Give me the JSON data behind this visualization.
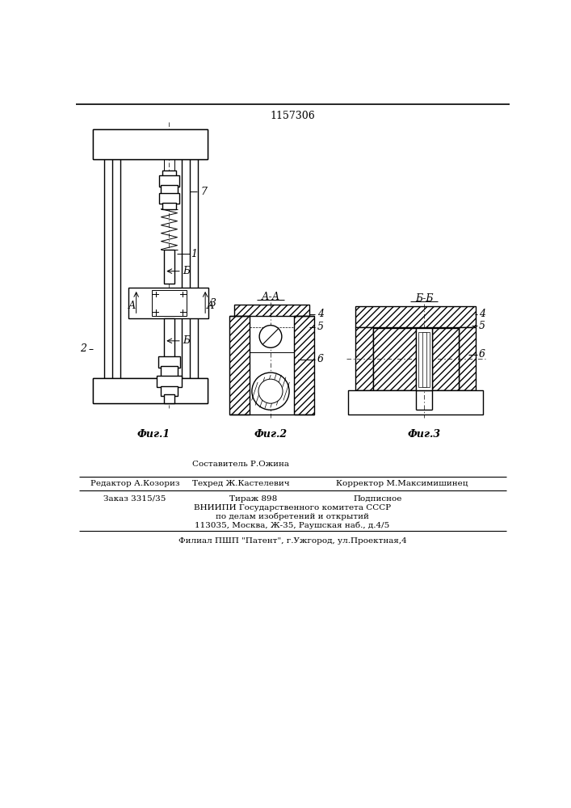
{
  "patent_number": "1157306",
  "fig1_label": "Фиг.1",
  "fig2_label": "Фиг.2",
  "fig3_label": "Фиг.3",
  "section_aa": "А-А",
  "section_bb": "Б-Б",
  "label_1": "1",
  "label_2": "2",
  "label_3": "3",
  "label_4": "4",
  "label_5": "5",
  "label_6": "6",
  "label_7": "7",
  "label_b": "Б",
  "label_a": "А",
  "editor_line": "Редактор А.Козориз",
  "composer_line": "Составитель Р.Ожина",
  "tech_line": "Техред Ж.Кастелевич",
  "corrector_line": "Корректор М.Максимишинец",
  "order_line": "Заказ 3315/35",
  "tirazh_line": "Тираж 898",
  "podp_line": "Подписное",
  "vniip_line": "ВНИИПИ Государственного комитета СССР",
  "affairs_line": "по делам изобретений и открытий",
  "address_line": "113035, Москва, Ж-35, Раушская наб., д.4/5",
  "filial_line": "Филиал ПШП \"Патент\", г.Ужгород, ул.Проектная,4",
  "bg_color": "#ffffff",
  "line_color": "#000000"
}
